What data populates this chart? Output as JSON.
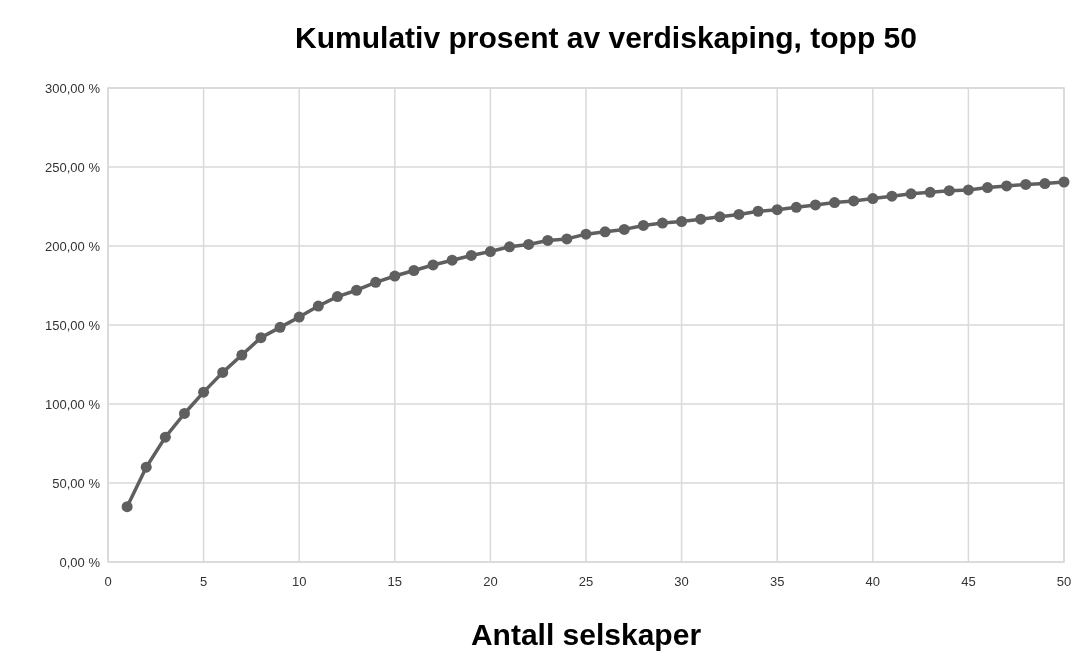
{
  "chart_data": {
    "type": "line",
    "title": "Kumulativ prosent av verdiskaping, topp 50",
    "xlabel": "Antall selskaper",
    "x": [
      1,
      2,
      3,
      4,
      5,
      6,
      7,
      8,
      9,
      10,
      11,
      12,
      13,
      14,
      15,
      16,
      17,
      18,
      19,
      20,
      21,
      22,
      23,
      24,
      25,
      26,
      27,
      28,
      29,
      30,
      31,
      32,
      33,
      34,
      35,
      36,
      37,
      38,
      39,
      40,
      41,
      42,
      43,
      44,
      45,
      46,
      47,
      48,
      49,
      50
    ],
    "series": [
      {
        "color": "#5f5f5f",
        "values": [
          35,
          60,
          79,
          94,
          107.5,
          120,
          131,
          142,
          148.5,
          155,
          162,
          168,
          172,
          177,
          181,
          184.5,
          188,
          191,
          194,
          196.5,
          199.5,
          201,
          203.5,
          204.5,
          207.5,
          209,
          210.5,
          213,
          214.5,
          215.5,
          217,
          218.5,
          220,
          222,
          223,
          224.5,
          226,
          227.5,
          228.5,
          230,
          231.5,
          233,
          234,
          235,
          235.5,
          237,
          238,
          239,
          239.5,
          240.5
        ]
      }
    ],
    "xlim": [
      0,
      50
    ],
    "xticks": [
      0,
      5,
      10,
      15,
      20,
      25,
      30,
      35,
      40,
      45,
      50
    ],
    "ylim": [
      0,
      300
    ],
    "yticks": [
      {
        "value": 0,
        "label": "0,00 %"
      },
      {
        "value": 50,
        "label": "50,00 %"
      },
      {
        "value": 100,
        "label": "100,00 %"
      },
      {
        "value": 150,
        "label": "150,00 %"
      },
      {
        "value": 200,
        "label": "200,00 %"
      },
      {
        "value": 250,
        "label": "250,00 %"
      },
      {
        "value": 300,
        "label": "300,00 %"
      }
    ],
    "grid": true,
    "marker": "circle",
    "line_style": "solid"
  }
}
